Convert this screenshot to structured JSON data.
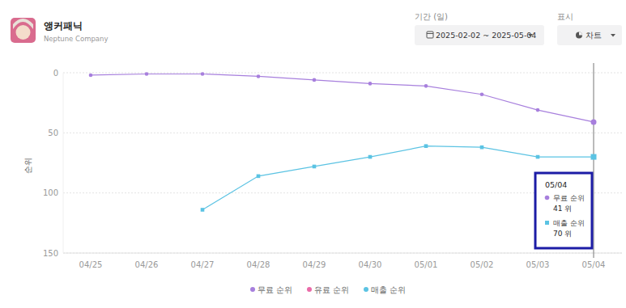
{
  "header": {
    "app_name": "앵커패닉",
    "publisher": "Neptune Company",
    "period_label": "기간 (일)",
    "period_value": "2025-02-02 ~ 2025-05-04",
    "display_label": "표시",
    "display_value": "차트"
  },
  "chart_data": {
    "type": "line",
    "y_label": "순위",
    "categories": [
      "04/25",
      "04/26",
      "04/27",
      "04/28",
      "04/29",
      "04/30",
      "05/01",
      "05/02",
      "05/03",
      "05/04"
    ],
    "series": [
      {
        "name": "무료 순위",
        "color": "#a77fdd",
        "marker": "circle",
        "values": [
          2,
          1,
          1,
          3,
          6,
          9,
          11,
          18,
          31,
          41
        ]
      },
      {
        "name": "유료 순위",
        "color": "#ea6aa8",
        "marker": "circle",
        "values": [
          null,
          null,
          null,
          null,
          null,
          null,
          null,
          null,
          null,
          null
        ]
      },
      {
        "name": "매출 순위",
        "color": "#5bc3e3",
        "marker": "square",
        "values": [
          null,
          null,
          114,
          86,
          78,
          70,
          61,
          62,
          70,
          70
        ]
      }
    ],
    "ylim": [
      150,
      0
    ],
    "yticks": [
      0,
      50,
      100,
      150
    ],
    "grid": true,
    "legend": "bottom",
    "annotations": {
      "title": "05/04",
      "items": [
        {
          "name": "무료 순위",
          "label": "41 위"
        },
        {
          "name": "매출 순위",
          "label": "70 위"
        }
      ]
    }
  }
}
